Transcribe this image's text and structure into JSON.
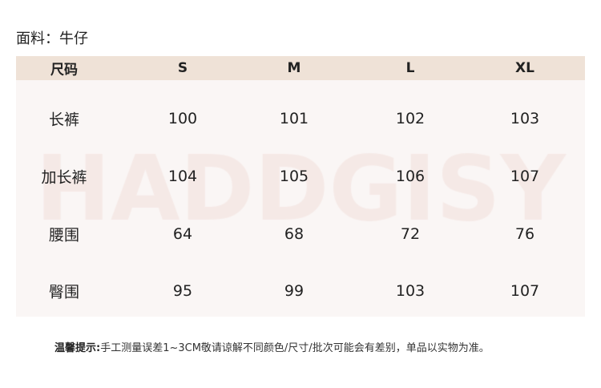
{
  "fabric": "面料：牛仔",
  "watermark": "HADDGISY",
  "colors": {
    "header_bg": "#efe2d7",
    "body_bg": "#faf6f5",
    "watermark": "#f5e9e6"
  },
  "table": {
    "headers": [
      "尺码",
      "S",
      "M",
      "L",
      "XL"
    ],
    "rows": [
      {
        "label": "长裤",
        "values": [
          "100",
          "101",
          "102",
          "103"
        ]
      },
      {
        "label": "加长裤",
        "values": [
          "104",
          "105",
          "106",
          "107"
        ]
      },
      {
        "label": "腰围",
        "values": [
          "64",
          "68",
          "72",
          "76"
        ]
      },
      {
        "label": "臀围",
        "values": [
          "95",
          "99",
          "103",
          "107"
        ]
      }
    ]
  },
  "note": {
    "title": "温馨提示:",
    "text": "手工测量误差1~3CM敬请谅解不同颜色/尺寸/批次可能会有差别，单品以实物为准。"
  }
}
